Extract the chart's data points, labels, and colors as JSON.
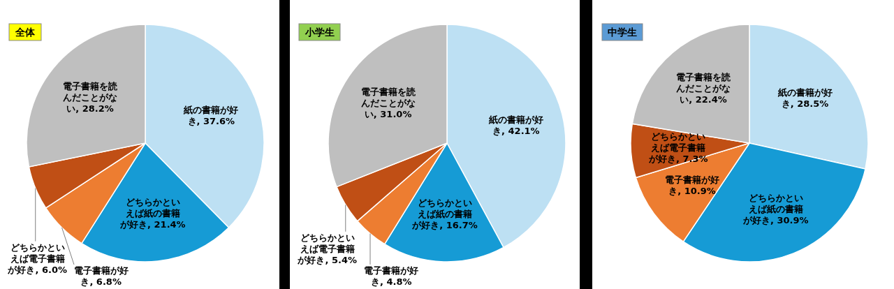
{
  "chart_data": [
    {
      "type": "pie",
      "title": "全体",
      "categories": [
        "紙の書籍が好き",
        "どちらかといえば紙の書籍が好き",
        "電子書籍が好き",
        "どちらかといえば電子書籍が好き",
        "電子書籍を読んだことがない"
      ],
      "values": [
        37.6,
        21.4,
        6.8,
        6.0,
        28.2
      ],
      "colors": [
        "#bde0f3",
        "#169bd5",
        "#ed7d31",
        "#c04f15",
        "#bfbfbf"
      ],
      "value_labels": [
        "37.6%",
        "21.4%",
        "6.8%",
        "6.0%",
        "28.2%"
      ]
    },
    {
      "type": "pie",
      "title": "小学生",
      "categories": [
        "紙の書籍が好き",
        "どちらかといえば紙の書籍が好き",
        "電子書籍が好き",
        "どちらかといえば電子書籍が好き",
        "電子書籍を読んだことがない"
      ],
      "values": [
        42.1,
        16.7,
        4.8,
        5.4,
        31.0
      ],
      "colors": [
        "#bde0f3",
        "#169bd5",
        "#ed7d31",
        "#c04f15",
        "#bfbfbf"
      ],
      "value_labels": [
        "42.1%",
        "16.7%",
        "4.8%",
        "5.4%",
        "31.0%"
      ]
    },
    {
      "type": "pie",
      "title": "中学生",
      "categories": [
        "紙の書籍が好き",
        "どちらかといえば紙の書籍が好き",
        "電子書籍が好き",
        "どちらかといえば電子書籍が好き",
        "電子書籍を読んだことがない"
      ],
      "values": [
        28.5,
        30.9,
        10.9,
        7.3,
        22.4
      ],
      "colors": [
        "#bde0f3",
        "#169bd5",
        "#ed7d31",
        "#c04f15",
        "#bfbfbf"
      ],
      "value_labels": [
        "28.5%",
        "30.9%",
        "10.9%",
        "7.3%",
        "22.4%"
      ]
    }
  ]
}
